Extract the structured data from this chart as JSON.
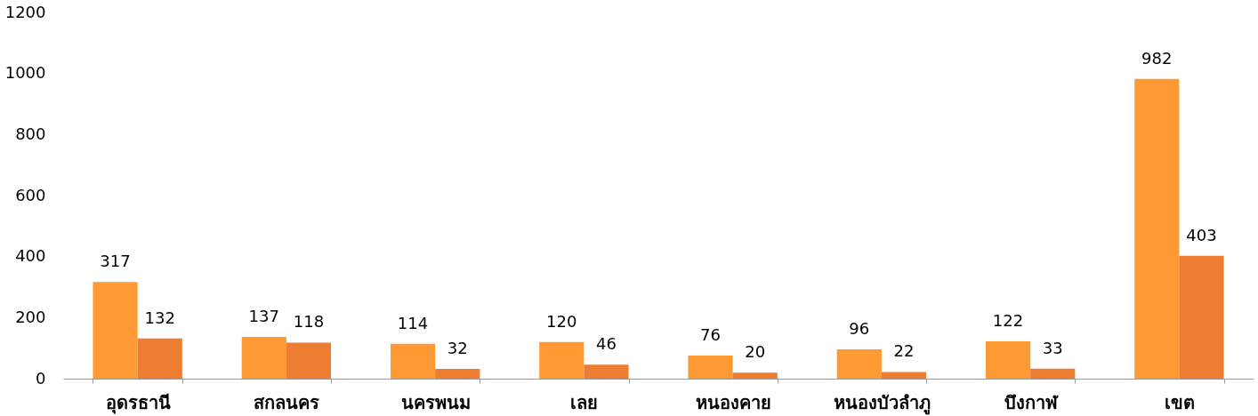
{
  "chart_data": {
    "type": "bar",
    "categories": [
      "อุดรธานี",
      "สกลนคร",
      "นครพนม",
      "เลย",
      "หนองคาย",
      "หนองบัวลำภู",
      "บึงกาฬ",
      "เขต"
    ],
    "series": [
      {
        "color": "#ff9933",
        "values": [
          317,
          137,
          114,
          120,
          76,
          96,
          122,
          982
        ]
      },
      {
        "color": "#ed7d31",
        "values": [
          132,
          118,
          32,
          46,
          20,
          22,
          33,
          403
        ]
      }
    ],
    "ylim": [
      0,
      1200
    ],
    "yticks": [
      0,
      200,
      400,
      600,
      800,
      1000,
      1200
    ],
    "grid": false,
    "legend": false,
    "data_labels": true
  }
}
